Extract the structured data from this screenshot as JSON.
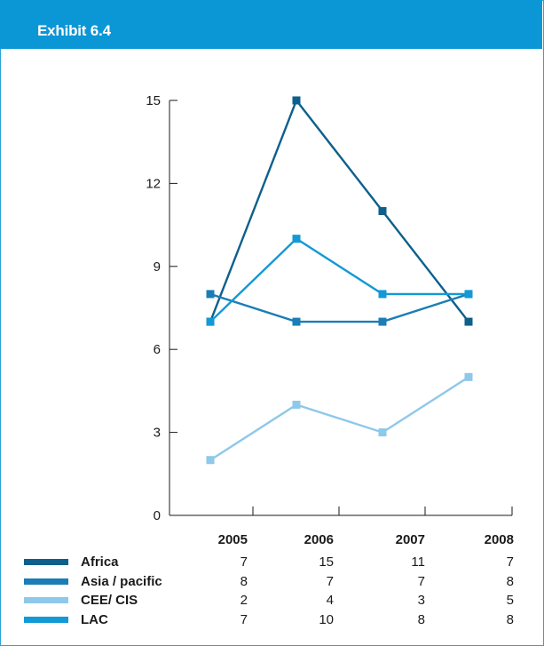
{
  "header": {
    "title": "Exhibit 6.4"
  },
  "colors": {
    "header_bg": "#0b96d6",
    "africa": "#0d5f8c",
    "asia_pacific": "#1b7db6",
    "cee_cis": "#8ec8ea",
    "lac": "#1299d6"
  },
  "chart_data": {
    "type": "line",
    "title": "",
    "xlabel": "",
    "ylabel": "",
    "ylim": [
      0,
      15
    ],
    "yticks": [
      "0",
      "3",
      "6",
      "9",
      "12",
      "15"
    ],
    "categories": [
      "2005",
      "2006",
      "2007",
      "2008"
    ],
    "series": [
      {
        "name": "Africa",
        "values": [
          7,
          15,
          11,
          7
        ],
        "labels": [
          "7",
          "15",
          "11",
          "7"
        ]
      },
      {
        "name": "Asia / pacific",
        "values": [
          8,
          7,
          7,
          8
        ],
        "labels": [
          "8",
          "7",
          "7",
          "8"
        ]
      },
      {
        "name": "CEE/ CIS",
        "values": [
          2,
          4,
          3,
          5
        ],
        "labels": [
          "2",
          "4",
          "3",
          "5"
        ]
      },
      {
        "name": "LAC",
        "values": [
          7,
          10,
          8,
          8
        ],
        "labels": [
          "7",
          "10",
          "8",
          "8"
        ]
      }
    ],
    "grid": false,
    "legend": "bottom-left table"
  }
}
